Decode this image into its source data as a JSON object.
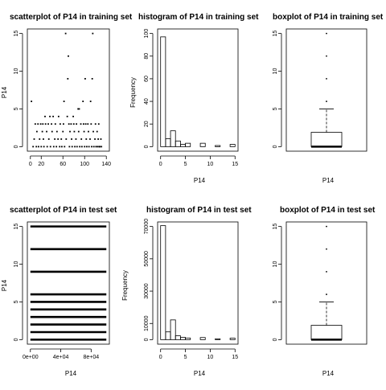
{
  "chart_data": [
    {
      "type": "scatter",
      "title": "scatterplot of P14 in training set",
      "xlabel": "",
      "ylabel": "P14",
      "xlim": [
        0,
        140
      ],
      "ylim": [
        0,
        15
      ],
      "xticks": [
        0,
        20,
        60,
        100,
        140
      ],
      "xtick_labels": [
        "0",
        "20",
        "60",
        "100",
        "140"
      ],
      "yticks": [
        0,
        5,
        10,
        15
      ],
      "yvalue_levels": [
        0,
        1,
        2,
        3,
        4,
        5,
        6,
        9,
        12,
        15
      ],
      "points": [
        [
          2,
          6
        ],
        [
          5,
          0
        ],
        [
          7,
          1
        ],
        [
          9,
          3
        ],
        [
          11,
          0
        ],
        [
          12,
          2
        ],
        [
          14,
          3
        ],
        [
          15,
          0
        ],
        [
          17,
          1
        ],
        [
          19,
          3
        ],
        [
          20,
          0
        ],
        [
          22,
          2
        ],
        [
          23,
          3
        ],
        [
          24,
          1
        ],
        [
          25,
          0
        ],
        [
          27,
          4
        ],
        [
          28,
          3
        ],
        [
          30,
          2
        ],
        [
          31,
          0
        ],
        [
          33,
          3
        ],
        [
          34,
          1
        ],
        [
          36,
          4
        ],
        [
          37,
          0
        ],
        [
          39,
          3
        ],
        [
          40,
          2
        ],
        [
          42,
          4
        ],
        [
          43,
          0
        ],
        [
          45,
          1
        ],
        [
          46,
          3
        ],
        [
          48,
          0
        ],
        [
          49,
          2
        ],
        [
          51,
          1
        ],
        [
          52,
          4
        ],
        [
          54,
          0
        ],
        [
          55,
          3
        ],
        [
          57,
          1
        ],
        [
          58,
          0
        ],
        [
          60,
          2
        ],
        [
          61,
          3
        ],
        [
          62,
          6
        ],
        [
          63,
          0
        ],
        [
          65,
          15
        ],
        [
          66,
          1
        ],
        [
          68,
          4
        ],
        [
          69,
          9
        ],
        [
          70,
          12
        ],
        [
          71,
          3
        ],
        [
          72,
          0
        ],
        [
          73,
          2
        ],
        [
          75,
          3
        ],
        [
          76,
          1
        ],
        [
          77,
          0
        ],
        [
          79,
          4
        ],
        [
          80,
          3
        ],
        [
          81,
          2
        ],
        [
          82,
          0
        ],
        [
          84,
          1
        ],
        [
          85,
          3
        ],
        [
          86,
          0
        ],
        [
          88,
          5
        ],
        [
          89,
          2
        ],
        [
          90,
          5
        ],
        [
          91,
          0
        ],
        [
          93,
          3
        ],
        [
          94,
          1
        ],
        [
          95,
          0
        ],
        [
          97,
          6
        ],
        [
          98,
          3
        ],
        [
          99,
          2
        ],
        [
          100,
          0
        ],
        [
          101,
          9
        ],
        [
          102,
          3
        ],
        [
          103,
          1
        ],
        [
          104,
          0
        ],
        [
          106,
          3
        ],
        [
          107,
          2
        ],
        [
          108,
          0
        ],
        [
          110,
          1
        ],
        [
          111,
          6
        ],
        [
          112,
          3
        ],
        [
          113,
          0
        ],
        [
          114,
          9
        ],
        [
          115,
          15
        ],
        [
          116,
          2
        ],
        [
          117,
          0
        ],
        [
          119,
          1
        ],
        [
          120,
          3
        ],
        [
          121,
          0
        ],
        [
          123,
          2
        ],
        [
          124,
          0
        ],
        [
          125,
          1
        ],
        [
          126,
          3
        ],
        [
          127,
          0
        ],
        [
          128,
          0
        ],
        [
          130,
          1
        ],
        [
          131,
          0
        ]
      ]
    },
    {
      "type": "bar",
      "title": "histogram of P14 in training set",
      "xlabel": "P14",
      "ylabel": "Frequency",
      "xlim": [
        0,
        15
      ],
      "ylim": [
        0,
        100
      ],
      "xticks": [
        0,
        5,
        10,
        15
      ],
      "yticks": [
        0,
        20,
        40,
        60,
        80,
        100
      ],
      "bin_width": 1,
      "bins": [
        0,
        1,
        2,
        3,
        4,
        5,
        6,
        7,
        8,
        9,
        10,
        11,
        12,
        13,
        14
      ],
      "counts": [
        97,
        7,
        14,
        5,
        2,
        3,
        0,
        0,
        3,
        0,
        0,
        1,
        0,
        0,
        2
      ]
    },
    {
      "type": "box",
      "title": "boxplot of P14 in training set",
      "xlabel": "P14",
      "ylabel": "",
      "ylim": [
        0,
        15
      ],
      "yticks": [
        0,
        5,
        10,
        15
      ],
      "median": 0,
      "q1": 0,
      "q3": 1.9,
      "whisker_low": 0,
      "whisker_high": 5,
      "outliers": [
        6,
        9,
        12,
        15
      ]
    },
    {
      "type": "scatter",
      "title": "scatterplot of P14 in test set",
      "xlabel": "P14",
      "ylabel": "P14",
      "xlim": [
        0,
        100000
      ],
      "ylim": [
        0,
        15
      ],
      "xticks": [
        0,
        40000,
        80000
      ],
      "xtick_labels": [
        "0e+00",
        "4e+04",
        "8e+04"
      ],
      "yticks": [
        0,
        5,
        10,
        15
      ],
      "level_values": [
        0,
        1,
        2,
        3,
        4,
        5,
        6,
        9,
        12,
        15
      ],
      "level_range": [
        0,
        100000
      ]
    },
    {
      "type": "bar",
      "title": "histogram of P14 in test set",
      "xlabel": "P14",
      "ylabel": "Frequency",
      "xlim": [
        0,
        15
      ],
      "ylim": [
        0,
        70000
      ],
      "xticks": [
        0,
        5,
        10,
        15
      ],
      "yticks": [
        0,
        10000,
        30000,
        50000,
        70000
      ],
      "bin_width": 1,
      "bins": [
        0,
        1,
        2,
        3,
        4,
        5,
        6,
        7,
        8,
        9,
        10,
        11,
        12,
        13,
        14
      ],
      "counts": [
        70500,
        4800,
        12200,
        2400,
        1400,
        1000,
        0,
        0,
        1300,
        0,
        0,
        500,
        0,
        0,
        900
      ]
    },
    {
      "type": "box",
      "title": "boxplot of P14 in test set",
      "xlabel": "P14",
      "ylabel": "",
      "ylim": [
        0,
        15
      ],
      "yticks": [
        0,
        5,
        10,
        15
      ],
      "median": 0,
      "q1": 0,
      "q3": 1.9,
      "whisker_low": 0,
      "whisker_high": 5,
      "outliers": [
        6,
        9,
        12,
        15
      ]
    }
  ]
}
